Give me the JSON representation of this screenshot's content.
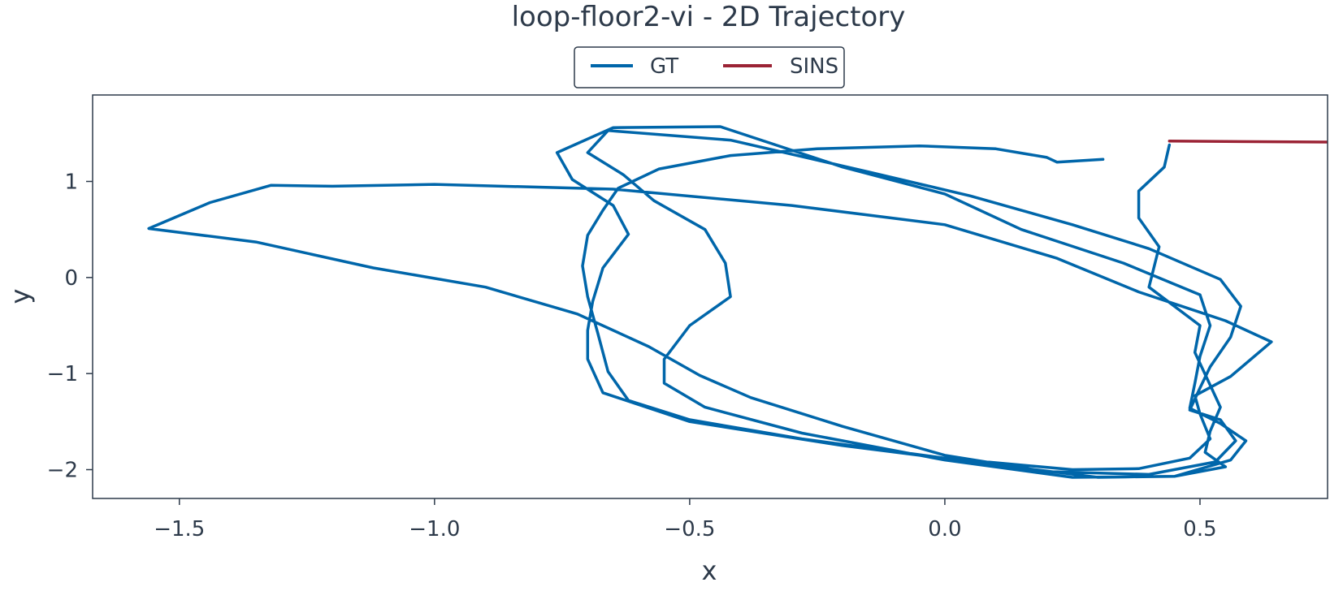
{
  "chart_data": {
    "type": "line",
    "title": "loop-floor2-vi - 2D Trajectory",
    "xlabel": "x",
    "ylabel": "y",
    "xlim": [
      -1.67,
      0.75
    ],
    "ylim": [
      -2.3,
      1.9
    ],
    "x_ticks": [
      -1.5,
      -1.0,
      -0.5,
      0.0,
      0.5
    ],
    "x_tick_labels": [
      "−1.5",
      "−1.0",
      "−0.5",
      "0.0",
      "0.5"
    ],
    "y_ticks": [
      1,
      0,
      -1,
      -2
    ],
    "y_tick_labels": [
      "1",
      "0",
      "−1",
      "−2"
    ],
    "grid": false,
    "legend_position": "top-center",
    "series": [
      {
        "name": "GT",
        "color": "#0066aa",
        "points": [
          [
            0.31,
            1.23
          ],
          [
            0.22,
            1.2
          ],
          [
            0.2,
            1.25
          ],
          [
            0.1,
            1.34
          ],
          [
            -0.05,
            1.37
          ],
          [
            -0.25,
            1.34
          ],
          [
            -0.42,
            1.27
          ],
          [
            -0.56,
            1.13
          ],
          [
            -0.64,
            0.93
          ],
          [
            -0.67,
            0.7
          ],
          [
            -0.7,
            0.44
          ],
          [
            -0.71,
            0.12
          ],
          [
            -0.7,
            -0.2
          ],
          [
            -0.68,
            -0.58
          ],
          [
            -0.66,
            -0.98
          ],
          [
            -0.62,
            -1.28
          ],
          [
            -0.5,
            -1.48
          ],
          [
            -0.28,
            -1.68
          ],
          [
            0.0,
            -1.88
          ],
          [
            0.25,
            -2.0
          ],
          [
            0.38,
            -1.99
          ],
          [
            0.48,
            -1.88
          ],
          [
            0.52,
            -1.68
          ],
          [
            0.5,
            -1.42
          ],
          [
            0.49,
            -1.23
          ],
          [
            0.56,
            -1.03
          ],
          [
            0.64,
            -0.67
          ],
          [
            0.55,
            -0.45
          ],
          [
            0.38,
            -0.15
          ],
          [
            0.22,
            0.2
          ],
          [
            0.0,
            0.55
          ],
          [
            -0.3,
            0.75
          ],
          [
            -0.65,
            0.92
          ],
          [
            -1.0,
            0.97
          ],
          [
            -1.2,
            0.95
          ],
          [
            -1.32,
            0.96
          ],
          [
            -1.44,
            0.78
          ],
          [
            -1.56,
            0.51
          ],
          [
            -1.35,
            0.37
          ],
          [
            -1.12,
            0.1
          ],
          [
            -0.9,
            -0.1
          ],
          [
            -0.72,
            -0.38
          ],
          [
            -0.58,
            -0.72
          ],
          [
            -0.48,
            -1.02
          ],
          [
            -0.38,
            -1.25
          ],
          [
            -0.2,
            -1.55
          ],
          [
            0.0,
            -1.85
          ],
          [
            0.2,
            -2.02
          ],
          [
            0.4,
            -2.05
          ],
          [
            0.53,
            -1.92
          ],
          [
            0.57,
            -1.7
          ],
          [
            0.54,
            -1.48
          ],
          [
            0.48,
            -1.38
          ],
          [
            0.5,
            -1.15
          ],
          [
            0.52,
            -0.93
          ],
          [
            0.56,
            -0.62
          ],
          [
            0.58,
            -0.3
          ],
          [
            0.54,
            -0.02
          ],
          [
            0.4,
            0.3
          ],
          [
            0.25,
            0.55
          ],
          [
            0.05,
            0.85
          ],
          [
            -0.15,
            1.1
          ],
          [
            -0.42,
            1.43
          ],
          [
            -0.66,
            1.53
          ],
          [
            -0.7,
            1.3
          ],
          [
            -0.63,
            1.07
          ],
          [
            -0.57,
            0.8
          ],
          [
            -0.47,
            0.5
          ],
          [
            -0.43,
            0.15
          ],
          [
            -0.42,
            -0.2
          ],
          [
            -0.5,
            -0.5
          ],
          [
            -0.55,
            -0.85
          ],
          [
            -0.55,
            -1.1
          ],
          [
            -0.47,
            -1.35
          ],
          [
            -0.28,
            -1.62
          ],
          [
            0.0,
            -1.9
          ],
          [
            0.25,
            -2.08
          ],
          [
            0.45,
            -2.07
          ],
          [
            0.56,
            -1.9
          ],
          [
            0.59,
            -1.7
          ],
          [
            0.54,
            -1.52
          ],
          [
            0.48,
            -1.36
          ],
          [
            0.49,
            -1.1
          ],
          [
            0.5,
            -0.82
          ],
          [
            0.52,
            -0.5
          ],
          [
            0.5,
            -0.18
          ],
          [
            0.35,
            0.15
          ],
          [
            0.15,
            0.5
          ],
          [
            0.0,
            0.87
          ],
          [
            -0.2,
            1.15
          ],
          [
            -0.44,
            1.57
          ],
          [
            -0.65,
            1.56
          ],
          [
            -0.76,
            1.3
          ],
          [
            -0.73,
            1.02
          ],
          [
            -0.65,
            0.75
          ],
          [
            -0.62,
            0.45
          ],
          [
            -0.67,
            0.1
          ],
          [
            -0.69,
            -0.25
          ],
          [
            -0.7,
            -0.55
          ],
          [
            -0.7,
            -0.85
          ],
          [
            -0.67,
            -1.2
          ],
          [
            -0.5,
            -1.5
          ],
          [
            -0.2,
            -1.75
          ],
          [
            0.1,
            -1.95
          ],
          [
            0.3,
            -2.08
          ],
          [
            0.45,
            -2.07
          ],
          [
            0.55,
            -1.97
          ],
          [
            0.51,
            -1.82
          ],
          [
            0.52,
            -1.6
          ],
          [
            0.54,
            -1.35
          ],
          [
            0.52,
            -1.12
          ],
          [
            0.49,
            -0.78
          ],
          [
            0.5,
            -0.5
          ],
          [
            0.4,
            -0.1
          ],
          [
            0.42,
            0.32
          ],
          [
            0.38,
            0.62
          ],
          [
            0.38,
            0.9
          ],
          [
            0.43,
            1.15
          ],
          [
            0.44,
            1.38
          ]
        ]
      },
      {
        "name": "SINS",
        "color": "#9b2335",
        "points": [
          [
            0.44,
            1.42
          ],
          [
            0.75,
            1.41
          ]
        ]
      }
    ]
  }
}
